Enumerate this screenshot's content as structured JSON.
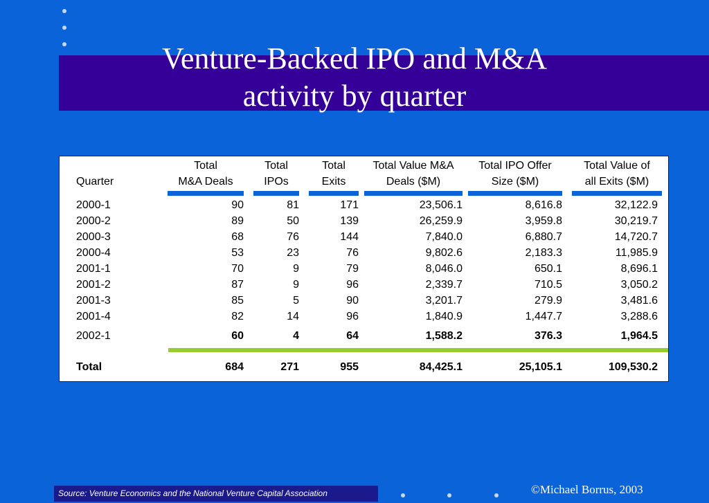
{
  "slide": {
    "title_line1": "Venture-Backed IPO and M&A",
    "title_line2": "activity by quarter",
    "source": "Source: Venture Economics and the National Venture Capital Association",
    "copyright": "©Michael Borrus, 2003"
  },
  "colors": {
    "background": "#0b63d9",
    "title_band": "#340097",
    "accent_bar": "#99cc33"
  },
  "table": {
    "headers": [
      {
        "line1": "",
        "line2": "Quarter"
      },
      {
        "line1": "Total",
        "line2": "M&A Deals"
      },
      {
        "line1": "Total",
        "line2": "IPOs"
      },
      {
        "line1": "Total",
        "line2": "Exits"
      },
      {
        "line1": "Total Value M&A",
        "line2": "Deals ($M)"
      },
      {
        "line1": "Total IPO Offer",
        "line2": "Size ($M)"
      },
      {
        "line1": "Total Value of",
        "line2": "all Exits ($M)"
      }
    ],
    "rows": [
      [
        "2000-1",
        "90",
        "81",
        "171",
        "23,506.1",
        "8,616.8",
        "32,122.9"
      ],
      [
        "2000-2",
        "89",
        "50",
        "139",
        "26,259.9",
        "3,959.8",
        "30,219.7"
      ],
      [
        "2000-3",
        "68",
        "76",
        "144",
        "7,840.0",
        "6,880.7",
        "14,720.7"
      ],
      [
        "2000-4",
        "53",
        "23",
        "76",
        "9,802.6",
        "2,183.3",
        "11,985.9"
      ],
      [
        "2001-1",
        "70",
        "9",
        "79",
        "8,046.0",
        "650.1",
        "8,696.1"
      ],
      [
        "2001-2",
        "87",
        "9",
        "96",
        "2,339.7",
        "710.5",
        "3,050.2"
      ],
      [
        "2001-3",
        "85",
        "5",
        "90",
        "3,201.7",
        "279.9",
        "3,481.6"
      ],
      [
        "2001-4",
        "82",
        "14",
        "96",
        "1,840.9",
        "1,447.7",
        "3,288.6"
      ],
      [
        "2002-1",
        "60",
        "4",
        "64",
        "1,588.2",
        "376.3",
        "1,964.5"
      ]
    ],
    "total": [
      "Total",
      "684",
      "271",
      "955",
      "84,425.1",
      "25,105.1",
      "109,530.2"
    ]
  }
}
